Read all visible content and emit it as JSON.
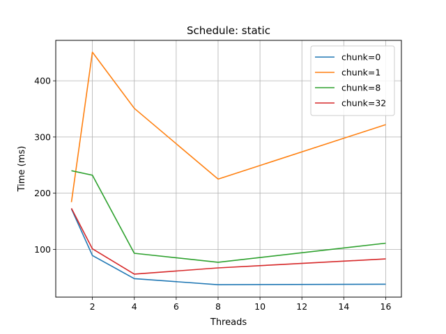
{
  "chart_data": {
    "type": "line",
    "title": "Schedule: static",
    "xlabel": "Threads",
    "ylabel": "Time (ms)",
    "x": [
      1,
      2,
      4,
      8,
      16
    ],
    "xlim": [
      0.25,
      16.75
    ],
    "ylim": [
      15,
      472
    ],
    "xticks": [
      2,
      4,
      6,
      8,
      10,
      12,
      14,
      16
    ],
    "yticks": [
      100,
      200,
      300,
      400
    ],
    "grid": true,
    "legend_position": "top-right",
    "series": [
      {
        "name": "chunk=0",
        "color": "#1f77b4",
        "values": [
          172,
          89,
          48,
          37,
          38
        ]
      },
      {
        "name": "chunk=1",
        "color": "#ff7f0e",
        "values": [
          184,
          451,
          351,
          225,
          322
        ]
      },
      {
        "name": "chunk=8",
        "color": "#2ca02c",
        "values": [
          240,
          232,
          93,
          77,
          111
        ]
      },
      {
        "name": "chunk=32",
        "color": "#d62728",
        "values": [
          173,
          101,
          56,
          67,
          83
        ]
      }
    ]
  }
}
